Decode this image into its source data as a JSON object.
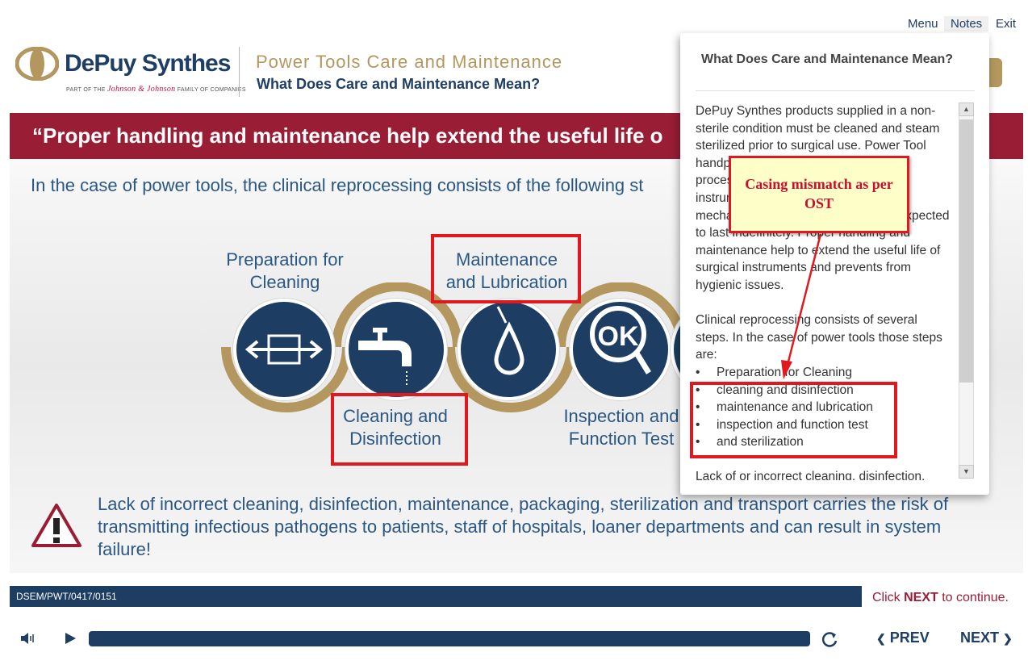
{
  "top_nav": {
    "menu": "Menu",
    "notes": "Notes",
    "exit": "Exit"
  },
  "brand": {
    "name": "DePuy Synthes",
    "sub_prefix": "PART OF THE",
    "sub_jj": "Johnson & Johnson",
    "sub_suffix": "FAMILY OF COMPANIES"
  },
  "header": {
    "course_title": "Power Tools Care and Maintenance",
    "page_title": "What Does Care and Maintenance Mean?"
  },
  "slide": {
    "banner": "“Proper handling and maintenance help extend the useful life o",
    "intro": "In the case of power tools, the clinical reprocessing consists of the following st",
    "steps": [
      {
        "line1": "Preparation for",
        "line2": "Cleaning",
        "icon": "arrows-box-icon"
      },
      {
        "line1": "Cleaning and",
        "line2": "Disinfection",
        "icon": "faucet-icon"
      },
      {
        "line1": "Maintenance",
        "line2": "and Lubrication",
        "icon": "oil-drop-icon"
      },
      {
        "line1": "Inspection and",
        "line2": "Function Test",
        "icon": "ok-magnifier-icon"
      }
    ],
    "warning": "Lack of incorrect cleaning, disinfection, maintenance, packaging, sterilization and transport carries the risk of transmitting infectious pathogens to patients, staff of hospitals, loaner departments and can result in system failure!"
  },
  "footer": {
    "code": "DSEM/PWT/0417/0151",
    "click_prefix": "Click ",
    "click_next": "NEXT",
    "click_suffix": " to continue.",
    "prev": "PREV",
    "next": "NEXT"
  },
  "notes": {
    "title": "What Does Care and Maintenance Mean?",
    "para1": "DePuy Synthes products supplied in a non-sterile condition must be cleaned and steam sterilized prior to surgical use. Power Tool handpieces and attachments may be processed multiple times. However, instruments can be exposed to high mechanical loads and should not be expected to last indefinitely. Proper handling and maintenance help to extend the useful life of surgical instruments and prevents from hygienic issues.",
    "para2": "Clinical reprocessing consists of several steps. In the case of power tools those steps are:",
    "list": [
      "Preparation for Cleaning",
      "cleaning and disinfection",
      "maintenance and lubrication",
      "inspection and function test",
      "and sterilization"
    ],
    "para3": "Lack of or incorrect cleaning, disinfection, maintenance, packaging, sterilization and transport"
  },
  "annotation": {
    "callout": "Casing mismatch as per OST"
  },
  "colors": {
    "navy": "#1d3d62",
    "crimson": "#9a1d36",
    "gold": "#b3975f",
    "annotation_red": "#e1191e"
  }
}
